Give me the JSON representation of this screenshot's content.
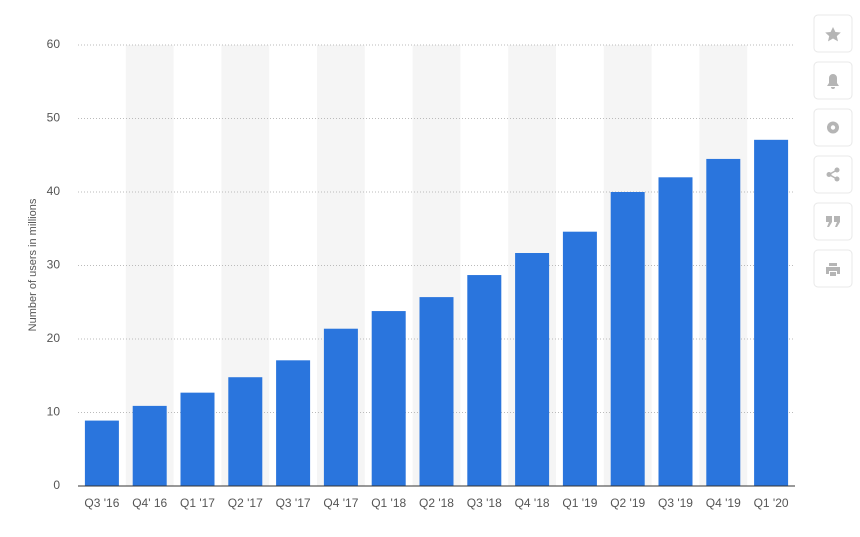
{
  "chart_data": {
    "type": "bar",
    "y_axis_label": "Number of users in millions",
    "categories": [
      "Q3 '16",
      "Q4' 16",
      "Q1 '17",
      "Q2 '17",
      "Q3 '17",
      "Q4 '17",
      "Q1 '18",
      "Q2 '18",
      "Q3 '18",
      "Q4 '18",
      "Q1 '19",
      "Q2 '19",
      "Q3 '19",
      "Q4 '19",
      "Q1 '20"
    ],
    "values": [
      8.9,
      10.9,
      12.7,
      14.8,
      17.1,
      21.4,
      23.8,
      25.7,
      28.7,
      31.7,
      34.6,
      40.0,
      42.0,
      44.5,
      47.1
    ],
    "color": "#2a75dd",
    "ylim": [
      0,
      60
    ],
    "yticks": [
      0,
      10,
      20,
      30,
      40,
      50,
      60
    ],
    "grid": true
  }
}
